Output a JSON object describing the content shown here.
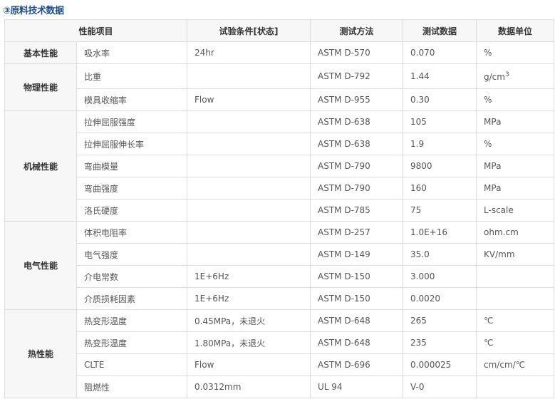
{
  "title": "③原料技术数据",
  "headers": [
    "性能项目",
    "试验条件[状态]",
    "测试方法",
    "测试数据",
    "数据单位"
  ],
  "groups": [
    {
      "name": "基本性能",
      "rows": [
        {
          "item": "吸水率",
          "cond": "24hr",
          "method": "ASTM D-570",
          "value": "0.070",
          "unit": "%"
        }
      ]
    },
    {
      "name": "物理性能",
      "rows": [
        {
          "item": "比重",
          "cond": "",
          "method": "ASTM D-792",
          "value": "1.44",
          "unit": "g/cm",
          "unit_sup": "3"
        },
        {
          "item": "模具收缩率",
          "cond": "Flow",
          "method": "ASTM D-955",
          "value": "0.30",
          "unit": "%"
        }
      ]
    },
    {
      "name": "机械性能",
      "rows": [
        {
          "item": "拉伸屈服强度",
          "cond": "",
          "method": "ASTM D-638",
          "value": "105",
          "unit": "MPa"
        },
        {
          "item": "拉伸屈服伸长率",
          "cond": "",
          "method": "ASTM D-638",
          "value": "1.9",
          "unit": "%"
        },
        {
          "item": "弯曲模量",
          "cond": "",
          "method": "ASTM D-790",
          "value": "9800",
          "unit": "MPa"
        },
        {
          "item": "弯曲强度",
          "cond": "",
          "method": "ASTM D-790",
          "value": "160",
          "unit": "MPa"
        },
        {
          "item": "洛氏硬度",
          "cond": "",
          "method": "ASTM D-785",
          "value": "75",
          "unit": "L-scale"
        }
      ]
    },
    {
      "name": "电气性能",
      "rows": [
        {
          "item": "体积电阻率",
          "cond": "",
          "method": "ASTM D-257",
          "value": "1.0E+16",
          "unit": "ohm.cm"
        },
        {
          "item": "电气强度",
          "cond": "",
          "method": "ASTM D-149",
          "value": "35.0",
          "unit": "KV/mm"
        },
        {
          "item": "介电常数",
          "cond": "1E+6Hz",
          "method": "ASTM D-150",
          "value": "3.000",
          "unit": ""
        },
        {
          "item": "介质损耗因素",
          "cond": "1E+6Hz",
          "method": "ASTM D-150",
          "value": "0.0020",
          "unit": ""
        }
      ]
    },
    {
      "name": "热性能",
      "rows": [
        {
          "item": "热变形温度",
          "cond": "0.45MPa，未退火",
          "method": "ASTM D-648",
          "value": "265",
          "unit": "℃"
        },
        {
          "item": "热变形温度",
          "cond": "1.80MPa，未退火",
          "method": "ASTM D-648",
          "value": "235",
          "unit": "℃"
        },
        {
          "item": "CLTE",
          "cond": "Flow",
          "method": "ASTM D-696",
          "value": "0.000025",
          "unit": "cm/cm/℃"
        },
        {
          "item": "阻燃性",
          "cond": "0.0312mm",
          "method": "UL 94",
          "value": "V-0",
          "unit": ""
        }
      ]
    }
  ]
}
